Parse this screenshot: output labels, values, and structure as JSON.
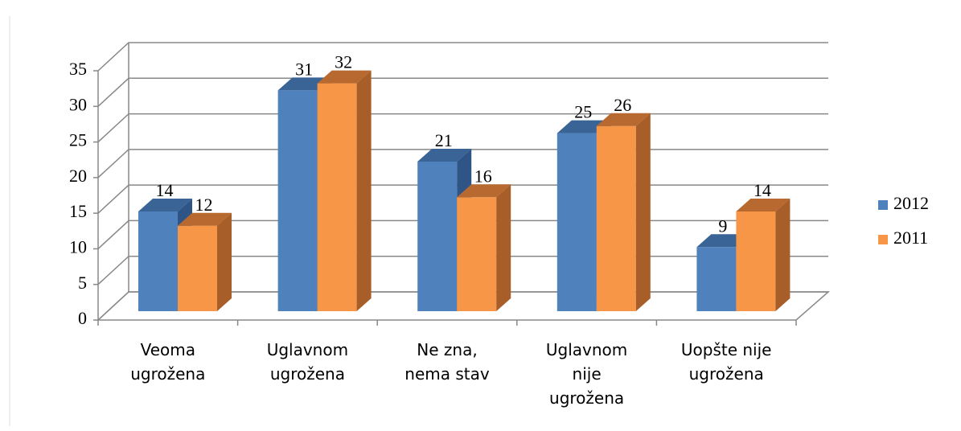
{
  "chart_data": {
    "type": "bar3d",
    "categories": [
      "Veoma\nugrožena",
      "Uglavnom\nugrožena",
      "Ne zna,\nnema stav",
      "Uglavnom\nnije\nugrožena",
      "Uopšte nije\nugrožena"
    ],
    "series": [
      {
        "name": "2012",
        "color": "#4f81bd",
        "values": [
          14,
          31,
          21,
          25,
          9
        ]
      },
      {
        "name": "2011",
        "color": "#f79646",
        "values": [
          12,
          32,
          16,
          26,
          14
        ]
      }
    ],
    "ylim": [
      0,
      35
    ],
    "yticks": [
      0,
      5,
      10,
      15,
      20,
      25,
      30,
      35
    ],
    "grid": true,
    "legend": "right"
  }
}
